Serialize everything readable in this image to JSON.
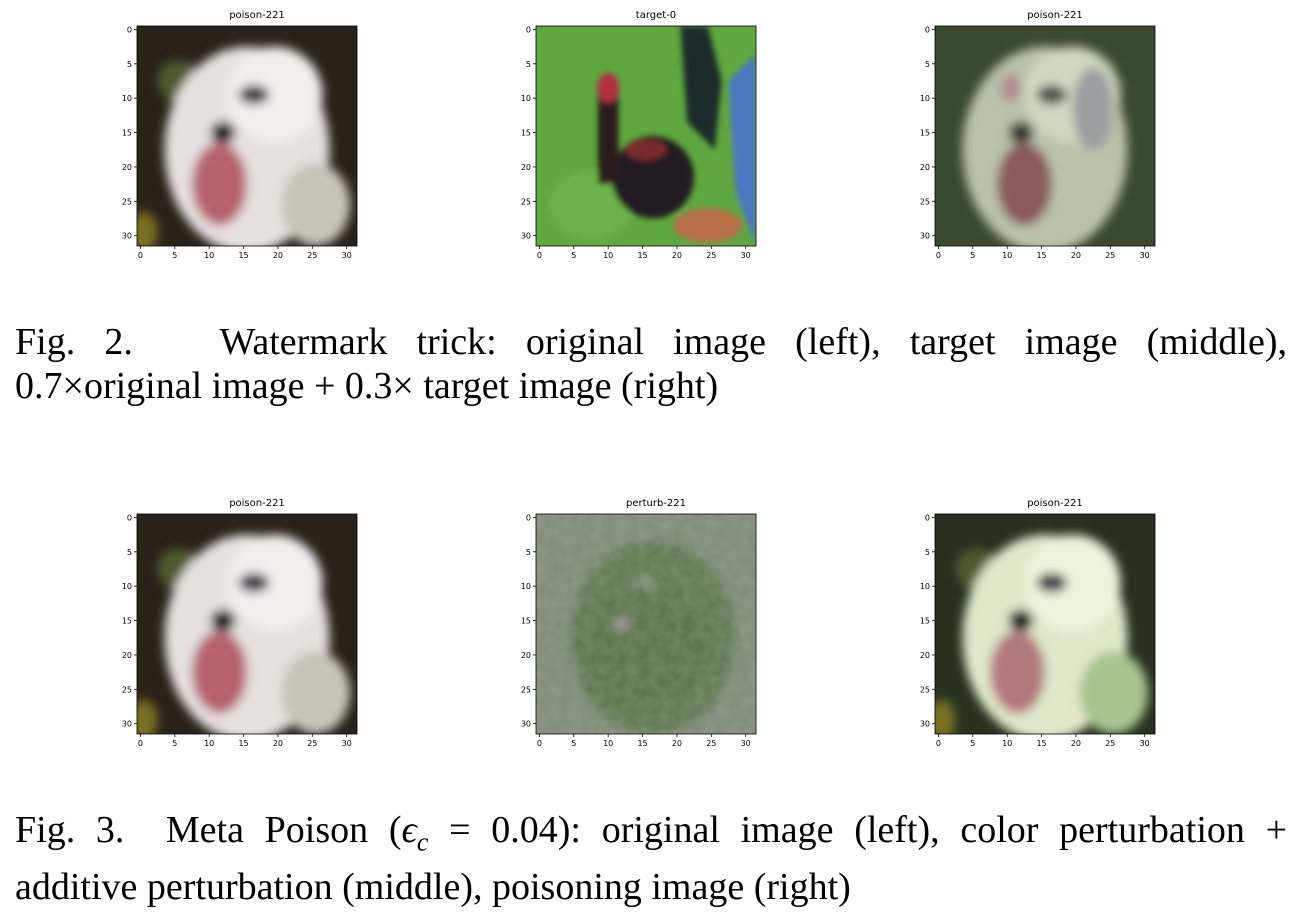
{
  "figures": [
    {
      "panels": [
        {
          "title": "poison-221",
          "image": "dog"
        },
        {
          "title": "target-0",
          "image": "rooster"
        },
        {
          "title": "poison-221",
          "image": "blend"
        }
      ],
      "caption": {
        "line1": {
          "label": "Fig. 2.",
          "text": "Watermark trick: original image (left), target image (middle),"
        },
        "line2": {
          "coef1": "0.7",
          "times": "×",
          "text1": "original image",
          "plus": "+",
          "coef2": "0.3",
          "text2": "target image (right)"
        }
      }
    },
    {
      "panels": [
        {
          "title": "poison-221",
          "image": "dog"
        },
        {
          "title": "perturb-221",
          "image": "perturb"
        },
        {
          "title": "poison-221",
          "image": "poisoned"
        }
      ],
      "caption": {
        "line1": {
          "label": "Fig. 3.",
          "text_a": "Meta Poison (",
          "eps": "ϵ",
          "sub": "c",
          "eq": "= 0.04",
          "text_b": "): original image (left), color perturbation +"
        },
        "line2": {
          "text": "additive perturbation (middle), poisoning image (right)"
        }
      }
    }
  ],
  "axis": {
    "x_ticks": [
      "0",
      "5",
      "10",
      "15",
      "20",
      "25",
      "30"
    ],
    "y_ticks": [
      "0",
      "5",
      "10",
      "15",
      "20",
      "25",
      "30"
    ]
  }
}
